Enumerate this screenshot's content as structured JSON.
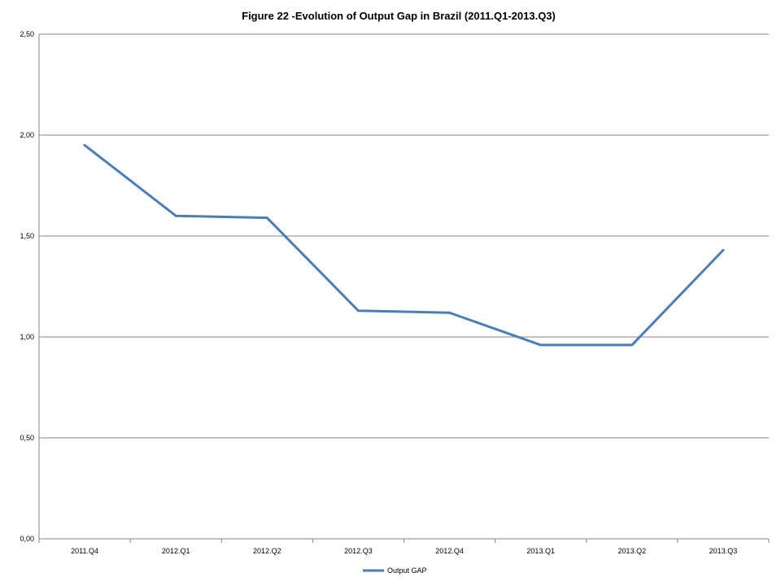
{
  "chart_data": {
    "type": "line",
    "title": "Figure 22 -Evolution  of Output Gap in Brazil  (2011.Q1-2013.Q3)",
    "xlabel": "",
    "ylabel": "",
    "categories": [
      "2011.Q4",
      "2012.Q1",
      "2012.Q2",
      "2012.Q3",
      "2012.Q4",
      "2013.Q1",
      "2013.Q2",
      "2013.Q3"
    ],
    "series": [
      {
        "name": "Output GAP",
        "values": [
          1.95,
          1.6,
          1.59,
          1.13,
          1.12,
          0.96,
          0.96,
          1.43
        ],
        "color": "#4a7ebb"
      }
    ],
    "ylim": [
      0,
      2.5
    ],
    "y_ticks": [
      "0,00",
      "0,50",
      "1,00",
      "1,50",
      "2,00",
      "2,50"
    ],
    "grid": true,
    "legend_position": "bottom",
    "gridline_color": "#868686",
    "axis_color": "#868686"
  }
}
